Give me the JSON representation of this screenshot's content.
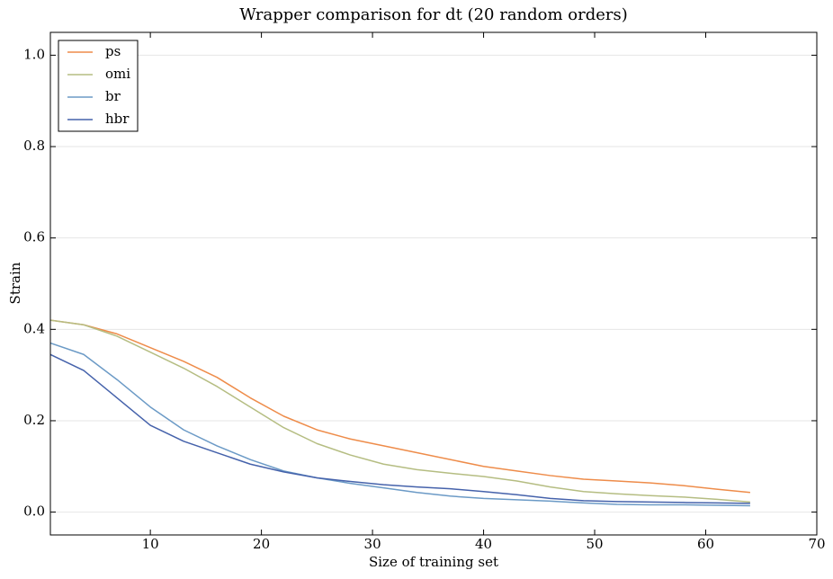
{
  "chart_data": {
    "type": "line",
    "title": "Wrapper comparison for dt (20 random orders)",
    "xlabel": "Size of training set",
    "ylabel": "Strain",
    "x": [
      1,
      4,
      7,
      10,
      13,
      16,
      19,
      22,
      25,
      28,
      31,
      34,
      37,
      40,
      43,
      46,
      49,
      52,
      55,
      58,
      61,
      64
    ],
    "series": [
      {
        "name": "ps",
        "color": "#ee8c4a",
        "values": [
          0.42,
          0.41,
          0.39,
          0.36,
          0.33,
          0.295,
          0.25,
          0.21,
          0.18,
          0.16,
          0.145,
          0.13,
          0.115,
          0.1,
          0.09,
          0.08,
          0.072,
          0.068,
          0.064,
          0.058,
          0.05,
          0.043
        ]
      },
      {
        "name": "omi",
        "color": "#b5bd82",
        "values": [
          0.42,
          0.41,
          0.385,
          0.35,
          0.315,
          0.275,
          0.23,
          0.185,
          0.15,
          0.125,
          0.105,
          0.093,
          0.085,
          0.078,
          0.068,
          0.055,
          0.045,
          0.04,
          0.036,
          0.033,
          0.028,
          0.022
        ]
      },
      {
        "name": "br",
        "color": "#6b9ac6",
        "values": [
          0.37,
          0.345,
          0.29,
          0.23,
          0.18,
          0.145,
          0.115,
          0.09,
          0.075,
          0.063,
          0.053,
          0.043,
          0.035,
          0.03,
          0.027,
          0.024,
          0.02,
          0.017,
          0.016,
          0.016,
          0.015,
          0.014
        ]
      },
      {
        "name": "hbr",
        "color": "#4562ab",
        "values": [
          0.345,
          0.31,
          0.25,
          0.19,
          0.155,
          0.13,
          0.105,
          0.088,
          0.075,
          0.067,
          0.06,
          0.055,
          0.051,
          0.045,
          0.038,
          0.03,
          0.025,
          0.023,
          0.022,
          0.021,
          0.02,
          0.019
        ]
      }
    ],
    "xlim": [
      1,
      70
    ],
    "xticks": [
      10,
      20,
      30,
      40,
      50,
      60,
      70
    ],
    "ylim": [
      -0.05,
      1.05
    ],
    "yticks": [
      {
        "value": 0,
        "label": "0.0"
      },
      {
        "value": 0.2,
        "label": "0.2"
      },
      {
        "value": 0.4,
        "label": "0.4"
      },
      {
        "value": 0.6,
        "label": "0.6"
      },
      {
        "value": 0.8,
        "label": "0.8"
      },
      {
        "value": 1,
        "label": "1.0"
      }
    ],
    "grid": true,
    "legend": "upper left"
  }
}
